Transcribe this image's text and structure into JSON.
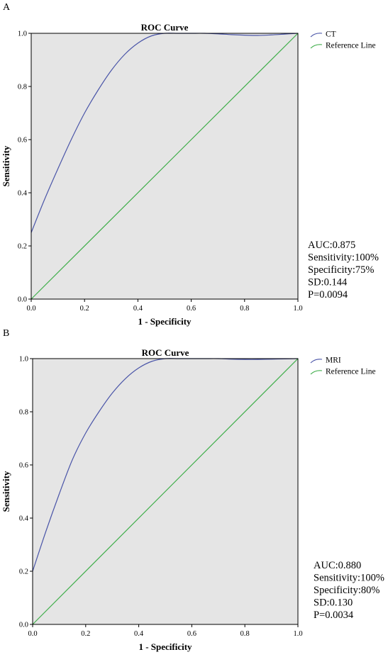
{
  "chart_data": [
    {
      "type": "line",
      "panel_label": "A",
      "title": "ROC Curve",
      "xlabel": "1 - Specificity",
      "ylabel": "Sensitivity",
      "xlim": [
        0.0,
        1.0
      ],
      "ylim": [
        0.0,
        1.0
      ],
      "x_ticks": [
        "0.0",
        "0.2",
        "0.4",
        "0.6",
        "0.8",
        "1.0"
      ],
      "y_ticks": [
        "0.0",
        "0.2",
        "0.4",
        "0.6",
        "0.8",
        "1.0"
      ],
      "grid": false,
      "legend_position": "right-top",
      "series": [
        {
          "name": "CT",
          "color": "#4a55a8",
          "x": [
            0.0,
            0.05,
            0.1,
            0.15,
            0.2,
            0.25,
            0.3,
            0.35,
            0.4,
            0.45,
            0.5,
            0.55,
            0.6,
            0.65,
            0.7,
            0.75,
            0.8,
            0.85,
            0.9,
            0.95,
            1.0
          ],
          "y": [
            0.25,
            0.375,
            0.49,
            0.6,
            0.7,
            0.785,
            0.86,
            0.92,
            0.963,
            0.99,
            1.0,
            1.0,
            1.0,
            1.0,
            0.998,
            0.995,
            0.993,
            0.992,
            0.994,
            0.997,
            1.0
          ]
        },
        {
          "name": "Reference Line",
          "color": "#3fae4a",
          "x": [
            0.0,
            1.0
          ],
          "y": [
            0.0,
            1.0
          ]
        }
      ],
      "annotations": [
        "AUC:0.875",
        "Sensitivity:100%",
        "Specificity:75%",
        "SD:0.144",
        "P=0.0094"
      ]
    },
    {
      "type": "line",
      "panel_label": "B",
      "title": "ROC Curve",
      "xlabel": "1 - Specificity",
      "ylabel": "Sensitivity",
      "xlim": [
        0.0,
        1.0
      ],
      "ylim": [
        0.0,
        1.0
      ],
      "x_ticks": [
        "0.0",
        "0.2",
        "0.4",
        "0.6",
        "0.8",
        "1.0"
      ],
      "y_ticks": [
        "0.0",
        "0.2",
        "0.4",
        "0.6",
        "0.8",
        "1.0"
      ],
      "grid": false,
      "legend_position": "right-top",
      "series": [
        {
          "name": "MRI",
          "color": "#4a55a8",
          "x": [
            0.0,
            0.05,
            0.1,
            0.15,
            0.2,
            0.25,
            0.3,
            0.35,
            0.4,
            0.45,
            0.5,
            0.55,
            0.6,
            0.65,
            0.7,
            0.75,
            0.8,
            0.85,
            0.9,
            0.95,
            1.0
          ],
          "y": [
            0.2,
            0.35,
            0.49,
            0.62,
            0.72,
            0.8,
            0.87,
            0.925,
            0.965,
            0.99,
            1.0,
            1.0,
            1.0,
            1.0,
            1.0,
            0.998,
            0.997,
            0.997,
            0.998,
            0.999,
            1.0
          ]
        },
        {
          "name": "Reference Line",
          "color": "#3fae4a",
          "x": [
            0.0,
            1.0
          ],
          "y": [
            0.0,
            1.0
          ]
        }
      ],
      "annotations": [
        "AUC:0.880",
        "Sensitivity:100%",
        "Specificity:80%",
        "SD:0.130",
        "P=0.0034"
      ]
    }
  ]
}
